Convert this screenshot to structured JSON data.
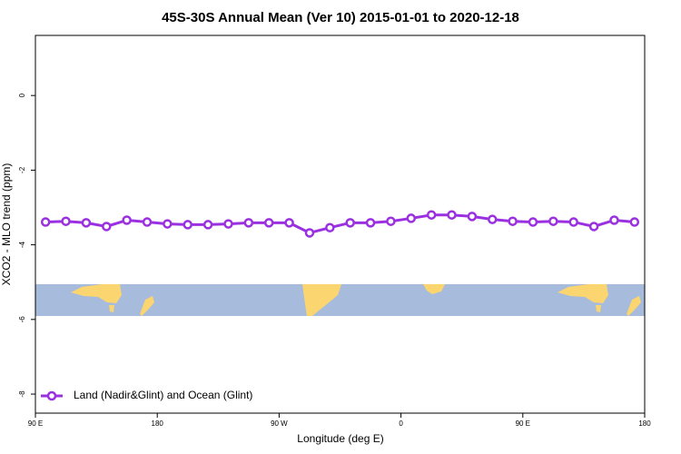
{
  "chart_data": {
    "type": "line",
    "title": "45S-30S Annual Mean (Ver 10)   2015-01-01 to 2020-12-18",
    "x_label": "Longitude (deg E)",
    "y_label": "XCO2 - MLO trend (ppm)",
    "x": [
      97.5,
      112.5,
      127.5,
      142.5,
      157.5,
      172.5,
      187.5,
      202.5,
      217.5,
      232.5,
      247.5,
      262.5,
      277.5,
      292.5,
      307.5,
      322.5,
      337.5,
      352.5,
      367.5,
      382.5,
      397.5,
      412.5,
      427.5,
      442.5,
      457.5,
      472.5,
      487.5,
      502.5,
      517.5,
      532.5
    ],
    "series": [
      {
        "name": "Land (Nadir&Glint) and Ocean (Glint)",
        "color": "#9b30e0",
        "values": [
          -3.39,
          -3.37,
          -3.41,
          -3.51,
          -3.34,
          -3.39,
          -3.44,
          -3.46,
          -3.46,
          -3.44,
          -3.41,
          -3.41,
          -3.41,
          -3.68,
          -3.54,
          -3.41,
          -3.41,
          -3.37,
          -3.29,
          -3.2,
          -3.2,
          -3.24,
          -3.32,
          -3.37,
          -3.39,
          -3.37,
          -3.39,
          -3.51,
          -3.34,
          -3.39
        ]
      }
    ],
    "xlim": [
      90,
      540
    ],
    "ylim": [
      -8.51,
      1.61
    ],
    "xticks": [
      {
        "value": 90,
        "label": "90 E"
      },
      {
        "value": 180,
        "label": "180"
      },
      {
        "value": 270,
        "label": "90 W"
      },
      {
        "value": 360,
        "label": "0"
      },
      {
        "value": 450,
        "label": "90 E"
      },
      {
        "value": 540,
        "label": "180"
      }
    ],
    "yticks": [
      0,
      -2,
      -4,
      -6,
      -8
    ],
    "legend_position": "bottom-left"
  }
}
